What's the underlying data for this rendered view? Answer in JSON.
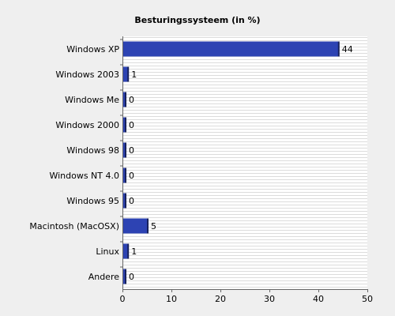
{
  "chart_data": {
    "type": "bar",
    "orientation": "horizontal",
    "title": "Besturingssysteem (in %)",
    "xlabel": "",
    "ylabel": "",
    "categories": [
      "Windows XP",
      "Windows 2003",
      "Windows Me",
      "Windows 2000",
      "Windows 98",
      "Windows NT 4.0",
      "Windows 95",
      "Macintosh (MacOSX)",
      "Linux",
      "Andere"
    ],
    "values": [
      44,
      1,
      0,
      0,
      0,
      0,
      0,
      5,
      1,
      0
    ],
    "data_labels": [
      "44",
      "1",
      "0",
      "0",
      "0",
      "0",
      "0",
      "5",
      "1",
      "0"
    ],
    "xlim": [
      0,
      50
    ],
    "x_ticks": [
      0,
      10,
      20,
      30,
      40,
      50
    ],
    "x_tick_labels": [
      "0",
      "10",
      "20",
      "30",
      "40",
      "50"
    ],
    "grid": "horizontal-striped",
    "legend": "none",
    "colors": {
      "background": "#efefef",
      "plot_background": "#ffffff",
      "stripe": "#dcdcdc",
      "bar": "#2d43b3",
      "bar_shadow": "#18225c",
      "axis": "#666666"
    }
  }
}
